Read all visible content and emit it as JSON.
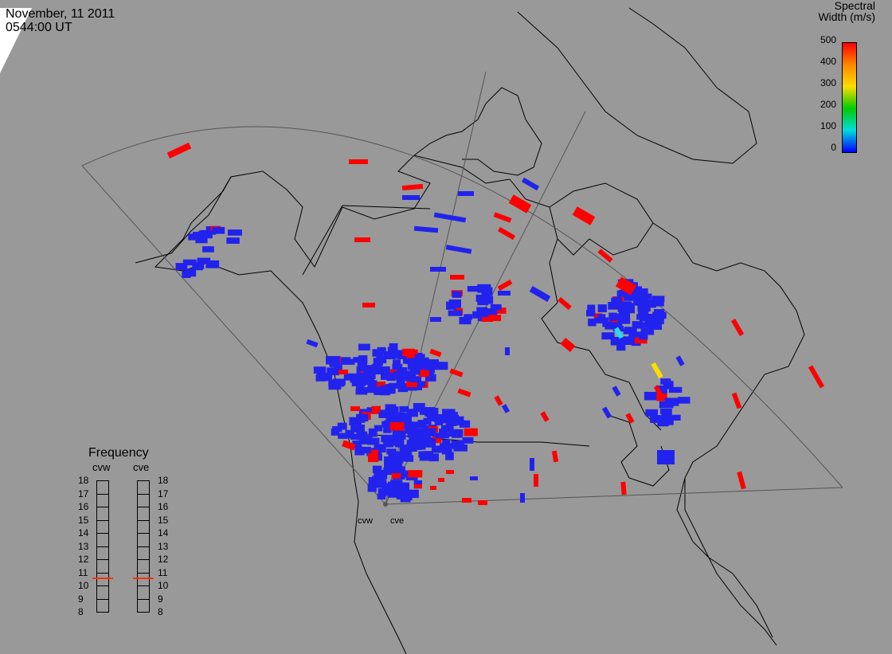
{
  "header": {
    "date": "November, 11 2011",
    "time": "0544:00 UT"
  },
  "colorbar": {
    "title_line1": "Spectral",
    "title_line2": "Width (m/s)",
    "ticks": [
      "500",
      "400",
      "300",
      "200",
      "100",
      "0"
    ],
    "gradient": [
      "#ff0000",
      "#ff8800",
      "#ffdd00",
      "#00cc00",
      "#00dddd",
      "#0000ff"
    ]
  },
  "frequency_panel": {
    "title": "Frequency",
    "left_label": "cvw",
    "right_label": "cve",
    "scale": [
      "18",
      "17",
      "16",
      "15",
      "14",
      "13",
      "12",
      "11",
      "10",
      "9",
      "8"
    ],
    "cvw_value": 10.6,
    "cve_value": 10.6,
    "marker_color": "#ff3300"
  },
  "radars": {
    "west": "cvw",
    "east": "cve"
  },
  "colors": {
    "background": "#999999",
    "land_outline": "#000000",
    "fov_outline": "#555555",
    "low_width": "#2222ee",
    "high_width": "#ff0000"
  }
}
